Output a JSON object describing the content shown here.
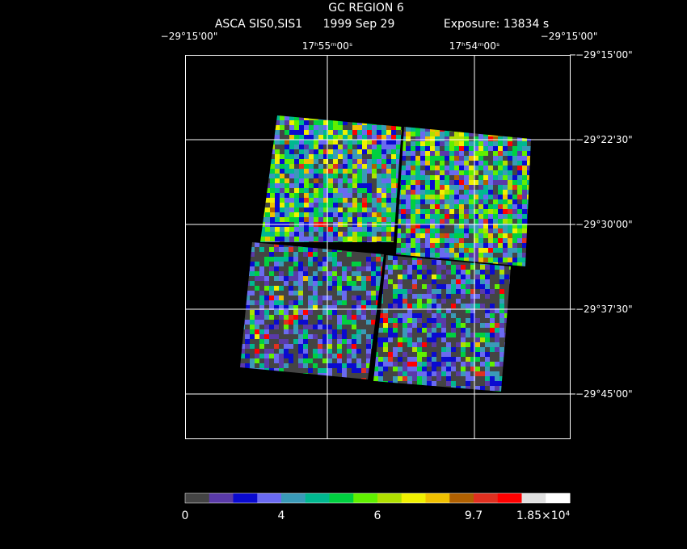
{
  "header": {
    "title": "GC REGION 6",
    "instrument": "ASCA SIS0,SIS1",
    "date": "1999 Sep 29",
    "exposure": "Exposure: 13834 s"
  },
  "axes": {
    "corner_left": "−29°15'00\"",
    "corner_right": "−29°15'00\"",
    "ra_labels": [
      "17ʰ55ᵐ00ˢ",
      "17ʰ54ᵐ00ˢ"
    ],
    "dec_labels": [
      "−29°15'00\"",
      "−29°22'30\"",
      "−29°30'00\"",
      "−29°37'30\"",
      "−29°45'00\""
    ]
  },
  "colorbar": {
    "colors": [
      "#444444",
      "#5a3aa8",
      "#0a0ad0",
      "#6a6af0",
      "#3a9ab8",
      "#00b890",
      "#00d040",
      "#60f000",
      "#b0e000",
      "#f0f000",
      "#f0c000",
      "#b06000",
      "#e03020",
      "#ff0000",
      "#e0e0e0",
      "#ffffff"
    ],
    "labels": [
      "0",
      "4",
      "6",
      "9.7",
      "1.85×10⁴"
    ]
  }
}
